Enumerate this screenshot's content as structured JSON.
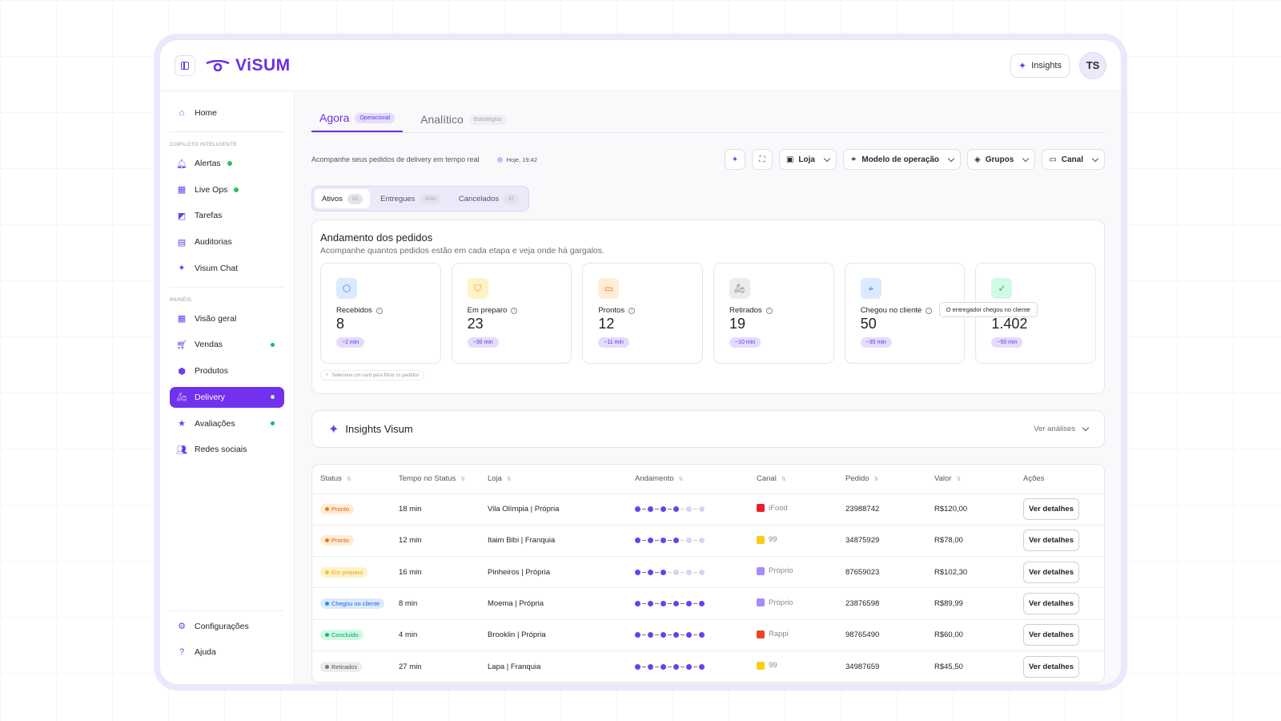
{
  "app": {
    "name": "ViSUM",
    "insights_label": "Insights",
    "avatar": "TS"
  },
  "sidebar": {
    "home": "Home",
    "section1": "COPILOTO INTELIGENTE",
    "copilot": [
      {
        "label": "Alertas"
      },
      {
        "label": "Live Ops"
      },
      {
        "label": "Tarefas"
      },
      {
        "label": "Auditorias"
      },
      {
        "label": "Visum Chat"
      }
    ],
    "section2": "PAINÉIS",
    "panels": [
      {
        "label": "Visão geral"
      },
      {
        "label": "Vendas"
      },
      {
        "label": "Produtos"
      },
      {
        "label": "Delivery"
      },
      {
        "label": "Avaliações"
      },
      {
        "label": "Redes sociais"
      }
    ],
    "footer": [
      {
        "label": "Configurações"
      },
      {
        "label": "Ajuda"
      }
    ]
  },
  "tabs": [
    {
      "label": "Agora",
      "pill": "Operacional"
    },
    {
      "label": "Analítico",
      "pill": "Estratégico"
    }
  ],
  "subtitle": "Acompanhe seus pedidos de delivery em tempo real",
  "timestamp": "Hoje, 19:42",
  "filters": [
    "Loja",
    "Modelo de operação",
    "Grupos",
    "Canal"
  ],
  "segments": [
    {
      "label": "Ativos",
      "count": "93"
    },
    {
      "label": "Entregues",
      "count": "1042"
    },
    {
      "label": "Cancelados",
      "count": "37"
    }
  ],
  "progress": {
    "title": "Andamento dos pedidos",
    "desc": "Acompanhe quantos pedidos estão em cada etapa e veja onde há gargalos.",
    "stages": [
      {
        "label": "Recebidos",
        "value": "8",
        "time": "~2 min"
      },
      {
        "label": "Em preparo",
        "value": "23",
        "time": "~30 min"
      },
      {
        "label": "Prontos",
        "value": "12",
        "time": "~11 min"
      },
      {
        "label": "Retirados",
        "value": "19",
        "time": "~10 min"
      },
      {
        "label": "Chegou no cliente",
        "value": "50",
        "time": "~35 min"
      },
      {
        "label": "",
        "value": "1.402",
        "time": "~50 min"
      }
    ],
    "tooltip": "O entregador chegou no cliente",
    "hint": "Selecione um card para filtrar os pedidos"
  },
  "insights": {
    "title": "Insights Visum",
    "action": "Ver análises"
  },
  "table": {
    "headers": [
      "Status",
      "Tempo no Status",
      "Loja",
      "Andamento",
      "Canal",
      "Pedido",
      "Valor",
      "Ações"
    ],
    "rows": [
      {
        "status": "Pronto",
        "time": "18 min",
        "store": "Vila Olímpia | Própria",
        "channel": "iFood",
        "order": "23988742",
        "value": "R$120,00",
        "action": "Ver detalhes"
      },
      {
        "status": "Pronto",
        "time": "12 min",
        "store": "Itaim Bibi | Franquia",
        "channel": "99",
        "order": "34875929",
        "value": "R$78,00",
        "action": "Ver detalhes"
      },
      {
        "status": "Em preparo",
        "time": "16 min",
        "store": "Pinheiros | Própria",
        "channel": "Próprio",
        "order": "87659023",
        "value": "R$102,30",
        "action": "Ver detalhes"
      },
      {
        "status": "Chegou no cliente",
        "time": "8 min",
        "store": "Moema | Própria",
        "channel": "Próprio",
        "order": "23876598",
        "value": "R$89,99",
        "action": "Ver detalhes"
      },
      {
        "status": "Concluído",
        "time": "4 min",
        "store": "Brooklin | Própria",
        "channel": "Rappi",
        "order": "98765490",
        "value": "R$60,00",
        "action": "Ver detalhes"
      },
      {
        "status": "Retirados",
        "time": "27 min",
        "store": "Lapa | Franquia",
        "channel": "99",
        "order": "34987659",
        "value": "R$45,50",
        "action": "Ver detalhes"
      }
    ]
  }
}
